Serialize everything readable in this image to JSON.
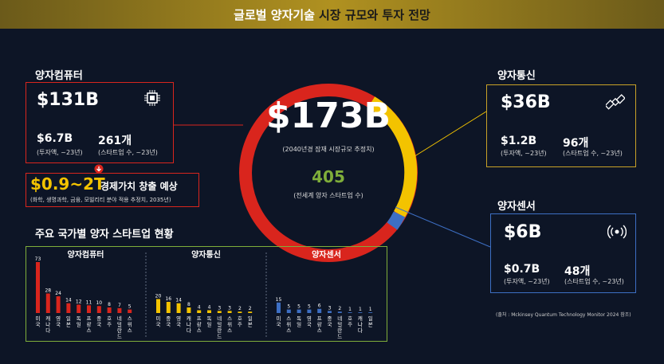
{
  "header": {
    "title_main": "글로벌 양자기술",
    "title_accent": "시장 규모와 투자 전망"
  },
  "center": {
    "value": "$173B",
    "value_caption": "(2040년경 잠재 시장규모 추정치)",
    "count": "405",
    "count_caption": "(전세계 양자 스타트업 수)"
  },
  "computer": {
    "label": "양자컴퓨터",
    "market": "$131B",
    "invest": "$6.7B",
    "invest_caption": "(투자액, ~23년)",
    "startups": "261개",
    "startups_caption": "(스타트업 수, ~23년)"
  },
  "econ": {
    "value": "$0.9~2T",
    "text": "경제가치 창출 예상",
    "caption": "(화학, 생명과학, 금융, 모빌리티 분야 적용 추정치, 2035년)"
  },
  "comm": {
    "label": "양자통신",
    "market": "$36B",
    "invest": "$1.2B",
    "invest_caption": "(투자액, ~23년)",
    "startups": "96개",
    "startups_caption": "(스타트업 수, ~23년)"
  },
  "sensor": {
    "label": "양자센서",
    "market": "$6B",
    "invest": "$0.7B",
    "invest_caption": "(투자액, ~23년)",
    "startups": "48개",
    "startups_caption": "(스타트업 수, ~23년)"
  },
  "source": "(출처 : Mckinsey Quantum Technology Monitor 2024 참조)",
  "colors": {
    "red": "#d9251d",
    "yellow": "#f3c300",
    "blue": "#3d6fc4",
    "gold": "#c9a227",
    "green": "#7fae3a"
  },
  "chart_data": {
    "type": "bar",
    "title": "주요 국가별 양자 스타트업 현황",
    "groups": [
      {
        "name": "양자컴퓨터",
        "color": "#d9251d",
        "categories": [
          "미국",
          "캐나다",
          "영국",
          "일본",
          "독일",
          "프랑스",
          "중국",
          "호주",
          "네덜란드",
          "스위스"
        ],
        "values": [
          73,
          28,
          24,
          14,
          12,
          11,
          10,
          8,
          7,
          5
        ]
      },
      {
        "name": "양자통신",
        "color": "#f3c300",
        "categories": [
          "미국",
          "중국",
          "영국",
          "캐나다",
          "프랑스",
          "독일",
          "네덜란드",
          "스위스",
          "호주",
          "일본"
        ],
        "values": [
          20,
          16,
          14,
          8,
          4,
          4,
          3,
          3,
          2,
          2
        ]
      },
      {
        "name": "양자센서",
        "color": "#3d6fc4",
        "categories": [
          "미국",
          "스위스",
          "독일",
          "영국",
          "프랑스",
          "중국",
          "네덜란드",
          "호주",
          "캐나다",
          "일본"
        ],
        "values": [
          15,
          5,
          5,
          5,
          6,
          3,
          2,
          1,
          1,
          1
        ]
      }
    ]
  }
}
